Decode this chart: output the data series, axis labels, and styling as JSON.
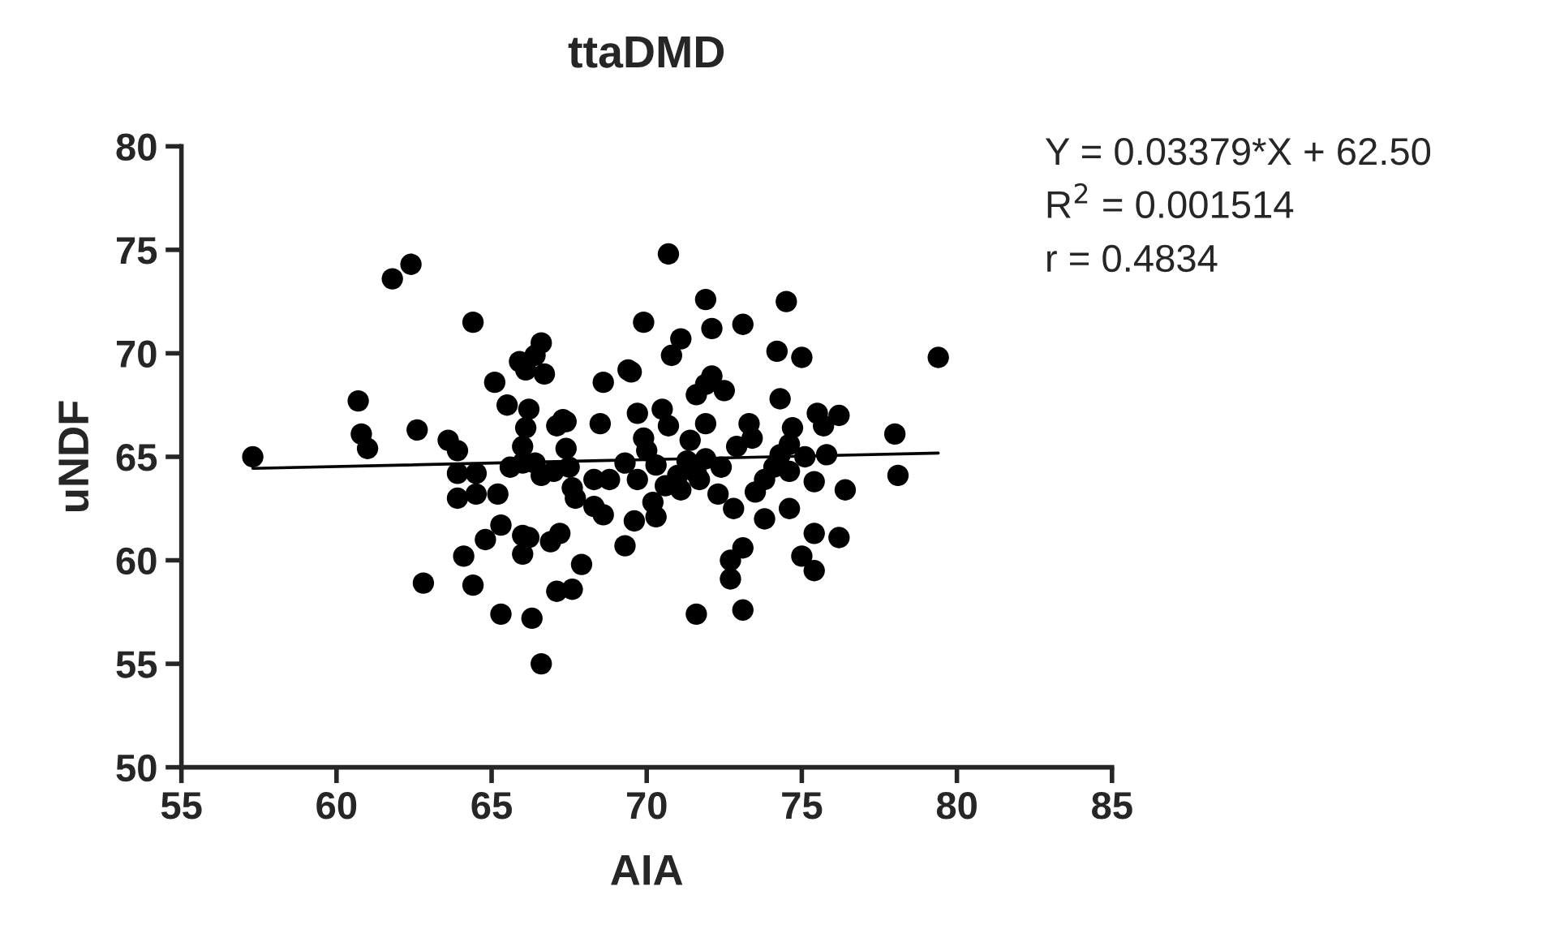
{
  "chart_data": {
    "type": "scatter",
    "title": "ttaDMD",
    "xlabel": "AIA",
    "ylabel": "uNDF",
    "xlim": [
      55,
      85
    ],
    "xticks": [
      55,
      60,
      65,
      70,
      75,
      80,
      85
    ],
    "ylim": [
      50,
      80
    ],
    "yticks": [
      50,
      55,
      60,
      65,
      70,
      75,
      80
    ],
    "grid": false,
    "legend": false,
    "annotations": [
      "Y = 0.03379*X + 62.50",
      "R$^{2}$ = 0.001514",
      "r = 0.4834"
    ],
    "series": [
      {
        "color": "#000000",
        "marker": "circle",
        "x": [
          57.3,
          61.8,
          62.4,
          64.4,
          60.7,
          60.8,
          61.0,
          62.6,
          63.6,
          63.9,
          63.9,
          64.5,
          63.9,
          64.5,
          65.2,
          64.1,
          62.8,
          64.4,
          65.3,
          64.8,
          65.3,
          66.3,
          66.6,
          65.1,
          65.5,
          65.9,
          66.1,
          66.6,
          66.4,
          66.7,
          66.2,
          66.1,
          66.0,
          65.6,
          66.0,
          66.4,
          66.6,
          67.0,
          67.5,
          67.1,
          67.4,
          67.4,
          67.6,
          67.7,
          66.0,
          66.2,
          66.0,
          66.9,
          67.2,
          67.9,
          67.1,
          67.6,
          70.7,
          71.9,
          74.5,
          69.9,
          72.1,
          73.1,
          71.1,
          70.8,
          74.2,
          75.0,
          68.6,
          69.4,
          69.5,
          72.1,
          71.9,
          71.6,
          72.5,
          74.3,
          67.3,
          68.5,
          69.7,
          70.5,
          70.7,
          71.9,
          73.3,
          73.4,
          72.9,
          74.7,
          74.6,
          75.5,
          76.2,
          75.7,
          79.4,
          78.0,
          78.1,
          69.9,
          71.4,
          70.0,
          69.3,
          68.3,
          68.8,
          69.7,
          70.3,
          71.3,
          71.9,
          72.4,
          71.0,
          71.6,
          70.6,
          71.1,
          71.7,
          74.3,
          75.1,
          75.8,
          74.1,
          74.6,
          73.8,
          73.5,
          75.4,
          76.4,
          72.3,
          72.8,
          68.3,
          68.6,
          70.2,
          70.3,
          69.6,
          74.6,
          73.8,
          69.3,
          75.4,
          76.2,
          73.1,
          72.7,
          72.7,
          75.0,
          75.4,
          71.6,
          73.1
        ],
        "values": [
          65.0,
          73.6,
          74.3,
          71.5,
          67.7,
          66.1,
          65.4,
          66.3,
          65.8,
          65.3,
          64.2,
          64.2,
          63.0,
          63.2,
          63.2,
          60.2,
          58.9,
          58.8,
          61.7,
          61.0,
          57.4,
          57.2,
          55.0,
          68.6,
          67.5,
          69.6,
          69.2,
          70.5,
          69.9,
          69.0,
          67.3,
          66.4,
          65.5,
          64.5,
          64.7,
          64.7,
          64.1,
          64.3,
          64.5,
          66.5,
          66.7,
          65.4,
          63.5,
          63.0,
          61.2,
          61.1,
          60.3,
          60.9,
          61.3,
          59.8,
          58.5,
          58.6,
          74.8,
          72.6,
          72.5,
          71.5,
          71.2,
          71.4,
          70.7,
          69.9,
          70.1,
          69.8,
          68.6,
          69.2,
          69.1,
          68.9,
          68.5,
          68.0,
          68.2,
          67.8,
          66.8,
          66.6,
          67.1,
          67.3,
          66.5,
          66.6,
          66.6,
          65.9,
          65.5,
          66.4,
          65.6,
          67.1,
          67.0,
          66.5,
          69.8,
          66.1,
          64.1,
          65.9,
          65.8,
          65.3,
          64.7,
          63.9,
          63.9,
          63.9,
          64.6,
          64.8,
          64.9,
          64.5,
          64.1,
          64.2,
          63.6,
          63.4,
          63.9,
          65.1,
          65.0,
          65.1,
          64.5,
          64.3,
          63.9,
          63.3,
          63.8,
          63.4,
          63.2,
          62.5,
          62.6,
          62.2,
          62.8,
          62.1,
          61.9,
          62.5,
          62.0,
          60.7,
          61.3,
          61.1,
          60.6,
          60.0,
          59.1,
          60.2,
          59.5,
          57.4,
          57.6
        ]
      },
      {
        "type": "line",
        "color": "#000000",
        "x": [
          57.3,
          79.4
        ],
        "values": [
          64.44,
          65.18
        ],
        "line_style": "solid"
      }
    ]
  }
}
